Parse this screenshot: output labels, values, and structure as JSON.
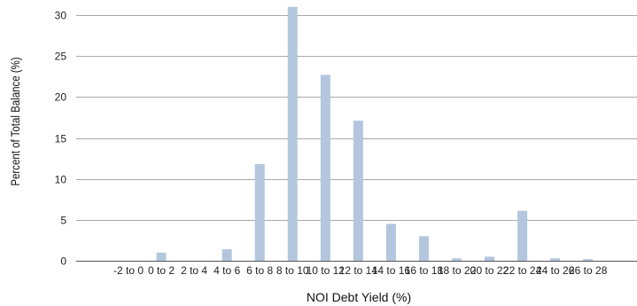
{
  "chart_data": {
    "type": "bar",
    "title": "",
    "xlabel": "NOI Debt Yield (%)",
    "ylabel": "Percent of Total Balance (%)",
    "categories": [
      "-2 to 0",
      "0 to 2",
      "2 to 4",
      "4 to 6",
      "6 to 8",
      "8 to 10",
      "10 to 12",
      "12 to 14",
      "14 to 16",
      "16 to 18",
      "18 to 20",
      "20 to 22",
      "22 to 24",
      "24 to 26",
      "26 to 28"
    ],
    "values": [
      0.0,
      1.0,
      0.0,
      1.4,
      11.8,
      31.0,
      22.7,
      17.1,
      4.5,
      3.0,
      0.3,
      0.5,
      6.1,
      0.3,
      0.2
    ],
    "ylim": [
      0,
      30
    ],
    "yticks": [
      0,
      5,
      10,
      15,
      20,
      25,
      30
    ],
    "grid": true,
    "legend": "none",
    "colors": {
      "bar": "#b3c6de",
      "grid": "#a9a9a9",
      "axis": "#555555"
    }
  }
}
